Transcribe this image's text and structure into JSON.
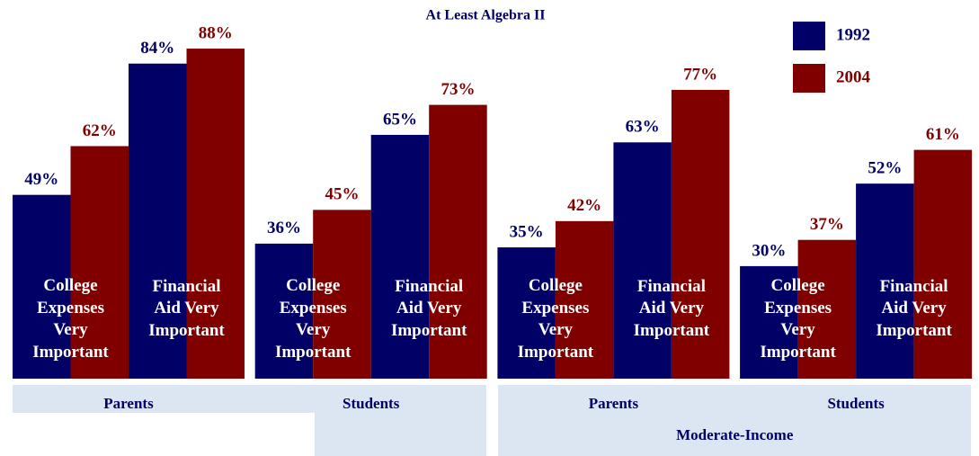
{
  "chart_data": {
    "type": "bar",
    "title": "At Least Algebra II",
    "categories": [
      "College Expenses Very Important",
      "Financial Aid Very Important",
      "College Expenses Very Important",
      "Financial Aid Very Important",
      "College Expenses Very Important",
      "Financial Aid Very Important",
      "College Expenses Very Important",
      "Financial Aid Very Important"
    ],
    "groups": [
      "Parents",
      "Students",
      "Parents",
      "Students"
    ],
    "supergroups": [
      null,
      "Moderate-Income"
    ],
    "series": [
      {
        "name": "1992",
        "color": "#000066",
        "values": [
          49,
          84,
          36,
          65,
          35,
          63,
          30,
          52
        ],
        "value_labels": [
          "49%",
          "84%",
          "36%",
          "65%",
          "35%",
          "63%",
          "30%",
          "52%"
        ]
      },
      {
        "name": "2004",
        "color": "#800000",
        "values": [
          62,
          88,
          45,
          73,
          42,
          77,
          37,
          61
        ],
        "value_labels": [
          "62%",
          "88%",
          "45%",
          "73%",
          "42%",
          "77%",
          "37%",
          "61%"
        ]
      }
    ],
    "ylim": [
      0,
      100
    ],
    "legend": "top-right"
  }
}
